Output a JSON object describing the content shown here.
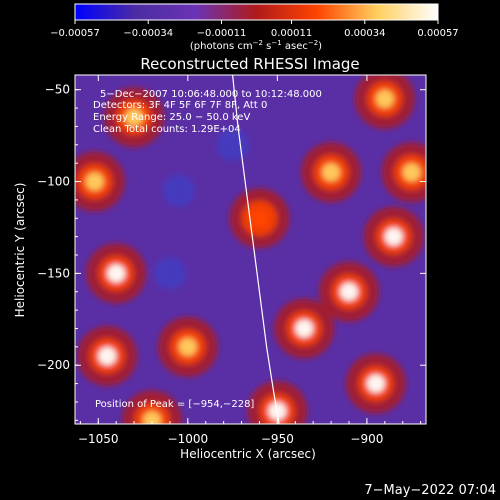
{
  "chart_data": {
    "type": "heatmap",
    "title": "Reconstructed RHESSI Image",
    "xlabel": "Heliocentric X (arcsec)",
    "ylabel": "Heliocentric Y (arcsec)",
    "xlim": [
      -1063,
      -867
    ],
    "ylim": [
      -232,
      -42
    ],
    "x_ticks": [
      -1050,
      -1000,
      -950,
      -900
    ],
    "x_tick_labels": [
      "−1050",
      "−1000",
      "−950",
      "−900"
    ],
    "y_ticks": [
      -200,
      -150,
      -100,
      -50
    ],
    "y_tick_labels": [
      "−200",
      "−150",
      "−100",
      "−50"
    ],
    "colorbar": {
      "range": [
        -0.00057,
        0.00057
      ],
      "ticks": [
        -0.00057,
        -0.00034,
        -0.00011,
        0.00011,
        0.00034,
        0.00057
      ],
      "tick_labels": [
        "−0.00057",
        "−0.00034",
        "−0.00011",
        "0.00011",
        "0.00034",
        "0.00057"
      ],
      "colormap": [
        "#0000ff",
        "#4b2ca3",
        "#6a33b5",
        "#b01a1a",
        "#ff4400",
        "#ffd060",
        "#ffffff"
      ],
      "units_line1": "(photons cm",
      "units_sup1": "−2",
      "units_line2": " s",
      "units_sup2": "−1",
      "units_line3": " asec",
      "units_sup3": "−2",
      "units_line4": ")"
    },
    "info_lines": [
      "5−Dec−2007 10:06:48.000 to 10:12:48.000",
      "Detectors: 3F 4F 5F 6F 7F 8F, Att 0",
      "Energy Range: 25.0 − 50.0 keV",
      "Clean     Total counts: 1.29E+04"
    ],
    "peak_label": "Position of Peak = [−954,−228]",
    "limb": [
      [
        -975,
        -42
      ],
      [
        -972,
        -70
      ],
      [
        -968,
        -100
      ],
      [
        -964,
        -130
      ],
      [
        -960,
        -160
      ],
      [
        -956,
        -190
      ],
      [
        -952,
        -215
      ],
      [
        -949,
        -232
      ]
    ],
    "hotspots": [
      {
        "x": -1040,
        "y": -150,
        "v": 0.00057
      },
      {
        "x": -1045,
        "y": -195,
        "v": 0.0005
      },
      {
        "x": -1030,
        "y": -65,
        "v": 0.00045
      },
      {
        "x": -1052,
        "y": -100,
        "v": 0.0004
      },
      {
        "x": -1000,
        "y": -190,
        "v": 0.0003
      },
      {
        "x": -950,
        "y": -225,
        "v": 0.00057
      },
      {
        "x": -935,
        "y": -180,
        "v": 0.00052
      },
      {
        "x": -910,
        "y": -160,
        "v": 0.00048
      },
      {
        "x": -895,
        "y": -210,
        "v": 0.00055
      },
      {
        "x": -885,
        "y": -130,
        "v": 0.0005
      },
      {
        "x": -890,
        "y": -55,
        "v": 0.00045
      },
      {
        "x": -920,
        "y": -95,
        "v": 0.00035
      },
      {
        "x": -960,
        "y": -120,
        "v": 0.0002
      },
      {
        "x": -1020,
        "y": -230,
        "v": 0.00042
      },
      {
        "x": -875,
        "y": -95,
        "v": 0.00047
      }
    ]
  },
  "footer": {
    "date": "7−May−2022 07:04"
  }
}
